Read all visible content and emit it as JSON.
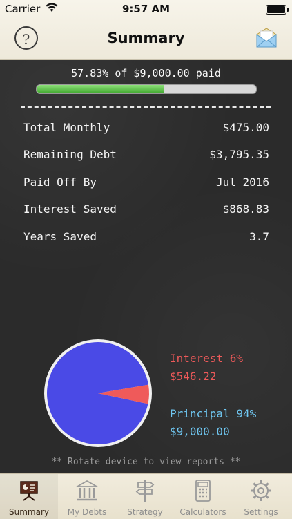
{
  "status_bar": {
    "carrier": "Carrier",
    "time": "9:57 AM"
  },
  "nav": {
    "title": "Summary",
    "help_label": "?"
  },
  "progress": {
    "text": "57.83% of $9,000.00 paid",
    "fraction": 0.5783
  },
  "summary_rows": [
    {
      "label": "Total Monthly",
      "value": "$475.00"
    },
    {
      "label": "Remaining Debt",
      "value": "$3,795.35"
    },
    {
      "label": "Paid Off By",
      "value": "Jul 2016"
    },
    {
      "label": "Interest Saved",
      "value": "$868.83"
    },
    {
      "label": "Years Saved",
      "value": "3.7"
    }
  ],
  "chart_data": {
    "type": "pie",
    "slices": [
      {
        "label": "Interest 6%",
        "amount": "$546.22",
        "percent": 6,
        "color": "#ef5a5a"
      },
      {
        "label": "Principal 94%",
        "amount": "$9,000.00",
        "percent": 94,
        "color": "#4a4ae6"
      }
    ]
  },
  "footer_note": "** Rotate device to view reports **",
  "tabs": [
    {
      "label": "Summary",
      "icon": "presentation-icon",
      "active": true
    },
    {
      "label": "My Debts",
      "icon": "bank-icon",
      "active": false
    },
    {
      "label": "Strategy",
      "icon": "signpost-icon",
      "active": false
    },
    {
      "label": "Calculators",
      "icon": "calculator-icon",
      "active": false
    },
    {
      "label": "Settings",
      "icon": "gear-icon",
      "active": false
    }
  ],
  "colors": {
    "interest": "#ef5a5a",
    "principal": "#4a4ae6",
    "principal_legend": "#6fc6f0",
    "progress": "#4fbf3a"
  }
}
